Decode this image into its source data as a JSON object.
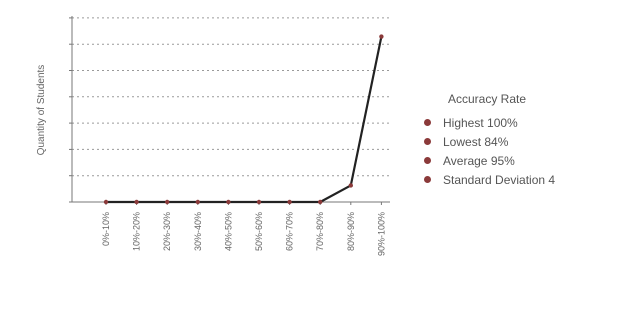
{
  "chart_data": {
    "type": "line",
    "title": "",
    "xlabel": "",
    "ylabel": "Quantity of Students",
    "categories": [
      "0%-10%",
      "10%-20%",
      "20%-30%",
      "30%-40%",
      "40%-50%",
      "50%-60%",
      "60%-70%",
      "70%-80%",
      "80%-90%",
      "90%-100%"
    ],
    "series": [
      {
        "name": "",
        "values": [
          0,
          0,
          0,
          0,
          0,
          0,
          0,
          0,
          2,
          20
        ],
        "color": "#222222"
      }
    ],
    "ylim": [
      0,
      22
    ],
    "grid": true,
    "y_tick_labels_shown": false,
    "legend_placement": "right"
  },
  "legend": {
    "title": "Accuracy Rate",
    "items": [
      {
        "label": "Highest 100%",
        "color": "#8b3a3a"
      },
      {
        "label": "Lowest 84%",
        "color": "#8b3a3a"
      },
      {
        "label": "Average 95%",
        "color": "#8b3a3a"
      },
      {
        "label": "Standard Deviation 4",
        "color": "#8b3a3a"
      }
    ]
  }
}
